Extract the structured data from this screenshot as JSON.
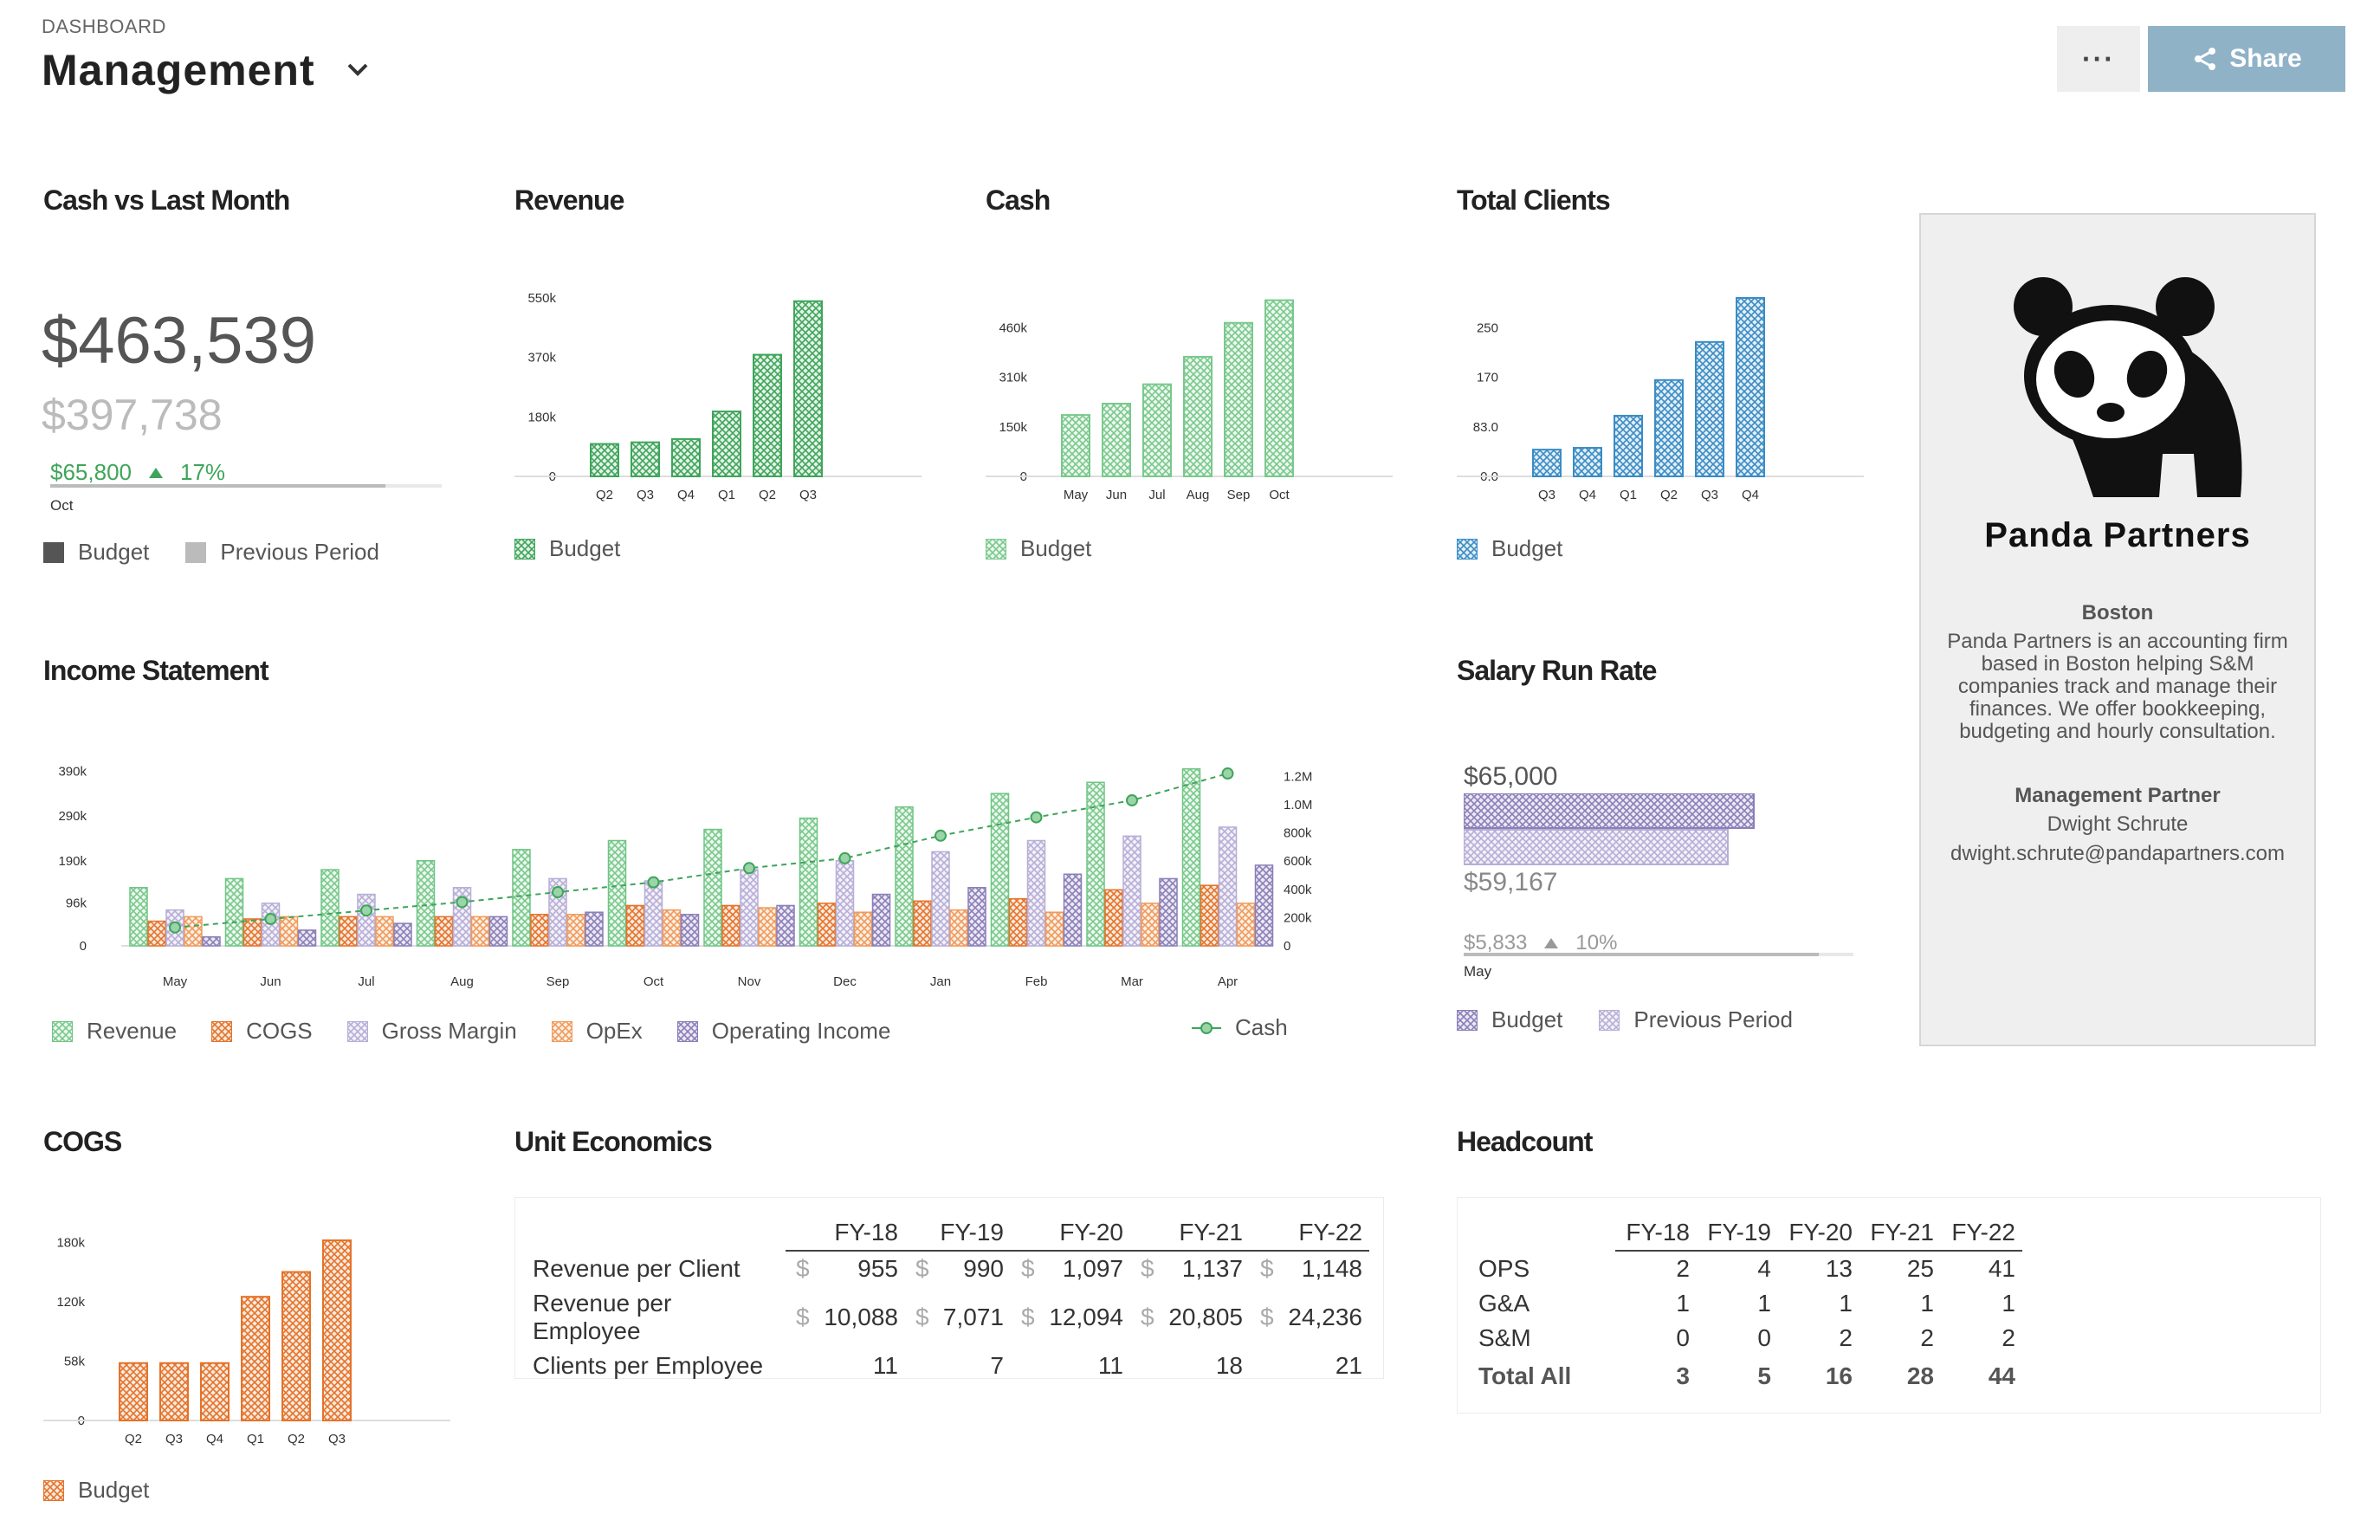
{
  "header": {
    "section_label": "DASHBOARD",
    "title": "Management",
    "share_label": "Share",
    "more_label": "···"
  },
  "colors": {
    "green": "#3ea55a",
    "light_green": "#6fc583",
    "blue": "#3a8cc4",
    "orange": "#e4732a",
    "purple": "#8a7fb8",
    "light_purple": "#b7aed6",
    "dark": "#555555",
    "gray": "#bbbbbb",
    "share_button": "#8fb2c7"
  },
  "cash_vs_last_month": {
    "title": "Cash vs Last Month",
    "current": "$463,539",
    "previous": "$397,738",
    "delta": "$65,800",
    "delta_pct": "17%",
    "progress": 0.857,
    "period": "Oct",
    "legend": [
      "Budget",
      "Previous Period"
    ]
  },
  "revenue": {
    "title": "Revenue",
    "legend": "Budget",
    "chart_data": {
      "type": "bar",
      "categories": [
        "Q2",
        "Q3",
        "Q4",
        "Q1",
        "Q2",
        "Q3"
      ],
      "values": [
        100000,
        105000,
        115000,
        200000,
        375000,
        540000
      ],
      "ymax": 550000,
      "ticks": [
        "550k",
        "370k",
        "180k",
        "0"
      ]
    }
  },
  "cash": {
    "title": "Cash",
    "legend": "Budget",
    "chart_data": {
      "type": "bar",
      "categories": [
        "May",
        "Jun",
        "Jul",
        "Aug",
        "Sep",
        "Oct"
      ],
      "values": [
        190000,
        225000,
        285000,
        370000,
        475000,
        545000
      ],
      "ymax": 460000,
      "ticks": [
        "460k",
        "310k",
        "150k",
        "0"
      ]
    }
  },
  "total_clients": {
    "title": "Total Clients",
    "legend": "Budget",
    "chart_data": {
      "type": "bar",
      "categories": [
        "Q3",
        "Q4",
        "Q1",
        "Q2",
        "Q3",
        "Q4"
      ],
      "values": [
        45,
        48,
        102,
        162,
        226,
        300
      ],
      "ymax": 250,
      "ticks": [
        "250",
        "170",
        "83.0",
        "0.0"
      ]
    }
  },
  "income_statement": {
    "title": "Income Statement",
    "legend": [
      "Revenue",
      "COGS",
      "Gross Margin",
      "OpEx",
      "Operating Income"
    ],
    "cash_legend": "Cash",
    "chart_data": {
      "type": "bar",
      "categories": [
        "May",
        "Jun",
        "Jul",
        "Aug",
        "Sep",
        "Oct",
        "Nov",
        "Dec",
        "Jan",
        "Feb",
        "Mar",
        "Apr"
      ],
      "left_ticks": [
        "390k",
        "290k",
        "190k",
        "96k",
        "0"
      ],
      "right_ticks": [
        "1.2M",
        "1.0M",
        "800k",
        "600k",
        "400k",
        "200k",
        "0"
      ],
      "series": [
        {
          "name": "Revenue",
          "values": [
            130000,
            150000,
            170000,
            190000,
            215000,
            235000,
            260000,
            285000,
            310000,
            340000,
            365000,
            395000
          ]
        },
        {
          "name": "COGS",
          "values": [
            55000,
            60000,
            65000,
            65000,
            70000,
            90000,
            90000,
            95000,
            100000,
            105000,
            125000,
            135000
          ]
        },
        {
          "name": "Gross Margin",
          "values": [
            80000,
            95000,
            115000,
            130000,
            150000,
            145000,
            170000,
            190000,
            210000,
            235000,
            245000,
            265000
          ]
        },
        {
          "name": "OpEx",
          "values": [
            65000,
            65000,
            65000,
            65000,
            70000,
            80000,
            85000,
            75000,
            80000,
            75000,
            95000,
            95000
          ]
        },
        {
          "name": "Operating Income",
          "values": [
            20000,
            35000,
            50000,
            65000,
            75000,
            70000,
            90000,
            115000,
            130000,
            160000,
            150000,
            180000
          ]
        }
      ],
      "line": {
        "name": "Cash",
        "values": [
          130000,
          190000,
          250000,
          310000,
          380000,
          450000,
          550000,
          620000,
          780000,
          910000,
          1030000,
          1220000
        ]
      }
    }
  },
  "salary_run_rate": {
    "title": "Salary Run Rate",
    "current": "$65,000",
    "previous": "$59,167",
    "delta": "$5,833",
    "delta_pct": "10%",
    "progress": 0.91,
    "period": "May",
    "legend": [
      "Budget",
      "Previous Period"
    ]
  },
  "company": {
    "name": "Panda Partners",
    "location": "Boston",
    "description": "Panda Partners is an accounting firm based in Boston helping S&M companies track and manage their finances. We offer bookkeeping, budgeting and hourly consultation.",
    "role": "Management Partner",
    "contact_name": "Dwight Schrute",
    "email": "dwight.schrute@pandapartners.com"
  },
  "cogs": {
    "title": "COGS",
    "legend": "Budget",
    "chart_data": {
      "type": "bar",
      "categories": [
        "Q2",
        "Q3",
        "Q4",
        "Q1",
        "Q2",
        "Q3"
      ],
      "values": [
        58000,
        58000,
        58000,
        125000,
        150000,
        182000
      ],
      "ymax": 180000,
      "ticks": [
        "180k",
        "120k",
        "58k",
        "0"
      ]
    }
  },
  "unit_economics": {
    "title": "Unit Economics",
    "columns": [
      "FY-18",
      "FY-19",
      "FY-20",
      "FY-21",
      "FY-22"
    ],
    "rows": [
      {
        "label": "Revenue per Client",
        "values": [
          "955",
          "990",
          "1,097",
          "1,137",
          "1,148"
        ]
      },
      {
        "label": "Revenue per Employee",
        "values": [
          "10,088",
          "7,071",
          "12,094",
          "20,805",
          "24,236"
        ]
      },
      {
        "label": "Clients per Employee",
        "values": [
          "11",
          "7",
          "11",
          "18",
          "21"
        ]
      }
    ]
  },
  "headcount": {
    "title": "Headcount",
    "columns": [
      "FY-18",
      "FY-19",
      "FY-20",
      "FY-21",
      "FY-22"
    ],
    "rows": [
      {
        "label": "OPS",
        "values": [
          "2",
          "4",
          "13",
          "25",
          "41"
        ]
      },
      {
        "label": "G&A",
        "values": [
          "1",
          "1",
          "1",
          "1",
          "1"
        ]
      },
      {
        "label": "S&M",
        "values": [
          "0",
          "0",
          "2",
          "2",
          "2"
        ]
      }
    ],
    "total": {
      "label": "Total All",
      "values": [
        "3",
        "5",
        "16",
        "28",
        "44"
      ]
    }
  }
}
